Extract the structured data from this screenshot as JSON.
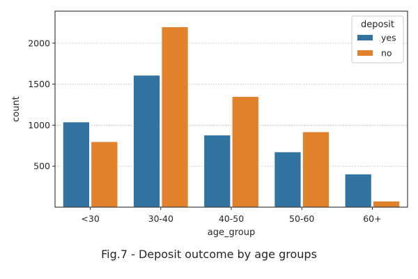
{
  "caption": "Fig.7 - Deposit outcome by age groups",
  "chart_data": {
    "type": "bar",
    "categories": [
      "<30",
      "30-40",
      "40-50",
      "50-60",
      "60+"
    ],
    "series": [
      {
        "name": "yes",
        "color": "#3274a1",
        "values": [
          1040,
          1610,
          880,
          675,
          405
        ]
      },
      {
        "name": "no",
        "color": "#e1812c",
        "values": [
          800,
          2200,
          1350,
          920,
          75
        ]
      }
    ],
    "xlabel": "age_group",
    "ylabel": "count",
    "yticks": [
      500,
      1000,
      1500,
      2000
    ],
    "ylim": [
      0,
      2390
    ],
    "grid": "y dotted",
    "legend": {
      "title": "deposit",
      "placement": "top-right"
    }
  }
}
